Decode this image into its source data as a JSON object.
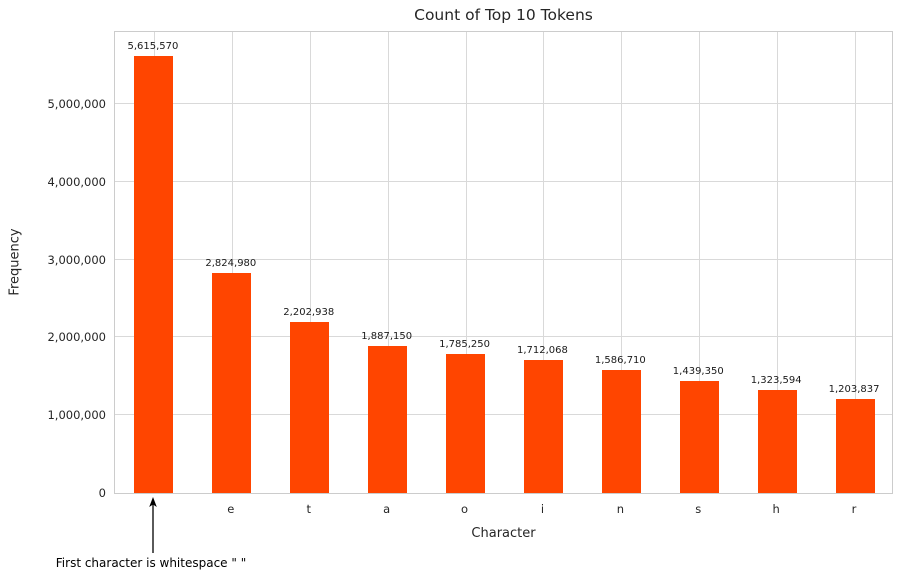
{
  "chart_data": {
    "type": "bar",
    "title": "Count of Top 10 Tokens",
    "xlabel": "Character",
    "ylabel": "Frequency",
    "categories": [
      " ",
      "e",
      "t",
      "a",
      "o",
      "i",
      "n",
      "s",
      "h",
      "r"
    ],
    "values": [
      5615570,
      2824980,
      2202938,
      1887150,
      1785250,
      1712068,
      1586710,
      1439350,
      1323594,
      1203837
    ],
    "bar_labels": [
      "5,615,570",
      "2,824,980",
      "2,202,938",
      "1,887,150",
      "1,785,250",
      "1,712,068",
      "1,586,710",
      "1,439,350",
      "1,323,594",
      "1,203,837"
    ],
    "bar_color": "#FF4500",
    "ylim": [
      0,
      5950000
    ],
    "yticks": [
      0,
      1000000,
      2000000,
      3000000,
      4000000,
      5000000
    ],
    "ytick_labels": [
      "0",
      "1,000,000",
      "2,000,000",
      "3,000,000",
      "4,000,000",
      "5,000,000"
    ],
    "grid": true,
    "legend": null,
    "annotation": {
      "text": "First character is whitespace \" \"",
      "target_category_index": 0
    }
  }
}
